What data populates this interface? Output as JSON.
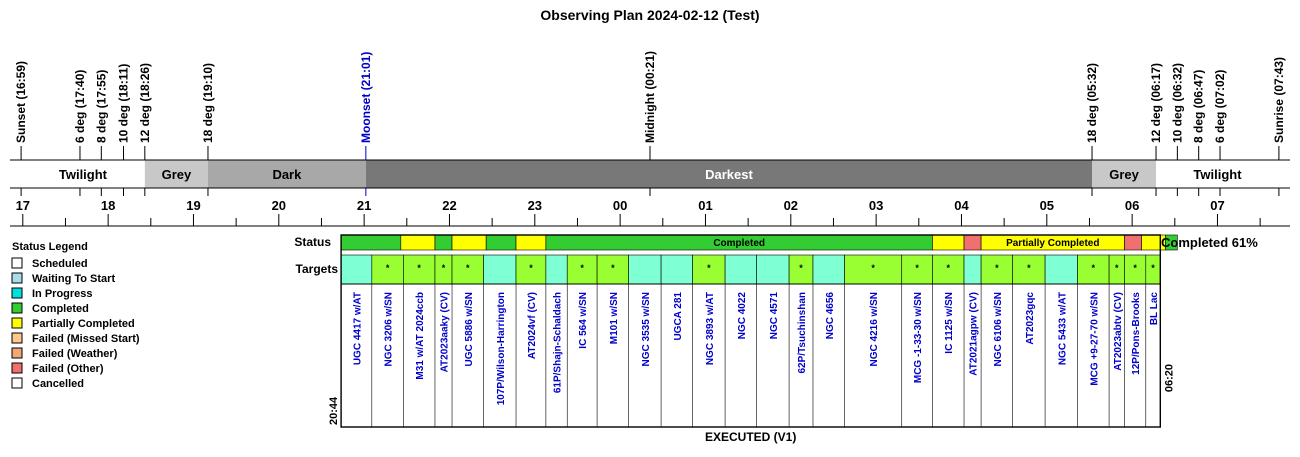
{
  "title": "Observing Plan 2024-02-12 (Test)",
  "colors": {
    "line": "#000000",
    "moon_event": "#0000cc",
    "twilight": "#ffffff",
    "grey": "#c8c8c8",
    "dark": "#a8a8a8",
    "darkest": "#787878",
    "target_text": "#0000cc"
  },
  "chart_data": {
    "type": "timeline",
    "x_unit": "local time (hours since 17:00)",
    "xlim": [
      16.85,
      31.85
    ],
    "events": [
      {
        "label": "Sunset (16:59)",
        "t": 16.98
      },
      {
        "label": "6 deg (17:40)",
        "t": 17.67
      },
      {
        "label": "8 deg (17:55)",
        "t": 17.92
      },
      {
        "label": "10 deg (18:11)",
        "t": 18.18
      },
      {
        "label": "12 deg (18:26)",
        "t": 18.43
      },
      {
        "label": "18 deg (19:10)",
        "t": 19.17
      },
      {
        "label": "Moonset (21:01)",
        "t": 21.02,
        "moon": true
      },
      {
        "label": "Midnight (00:21)",
        "t": 24.35
      },
      {
        "label": "18 deg (05:32)",
        "t": 29.53
      },
      {
        "label": "12 deg (06:17)",
        "t": 30.28
      },
      {
        "label": "10 deg (06:32)",
        "t": 30.53
      },
      {
        "label": "8 deg (06:47)",
        "t": 30.78
      },
      {
        "label": "6 deg (07:02)",
        "t": 31.03
      },
      {
        "label": "Sunrise (07:43)",
        "t": 31.72
      }
    ],
    "periods": [
      {
        "label": "Twilight",
        "start": 16.98,
        "end": 18.43,
        "color": "twilight"
      },
      {
        "label": "Grey",
        "start": 18.43,
        "end": 19.17,
        "color": "grey"
      },
      {
        "label": "Dark",
        "start": 19.17,
        "end": 21.02,
        "color": "dark"
      },
      {
        "label": "Darkest",
        "start": 21.02,
        "end": 29.53,
        "color": "darkest"
      },
      {
        "label": "Grey",
        "start": 29.53,
        "end": 30.28,
        "color": "grey"
      },
      {
        "label": "Twilight",
        "start": 30.28,
        "end": 31.72,
        "color": "twilight"
      }
    ],
    "hour_ticks": [
      "17",
      "18",
      "19",
      "20",
      "21",
      "22",
      "23",
      "00",
      "01",
      "02",
      "03",
      "04",
      "05",
      "06",
      "07"
    ],
    "window": {
      "start": 20.73,
      "end": 30.33,
      "start_label": "20:44",
      "end_label": "06:20",
      "caption": "EXECUTED (V1)"
    },
    "status_label": "Status",
    "targets_label": "Targets",
    "completion": "Completed 61%",
    "status_segments": [
      {
        "start": 20.73,
        "end": 21.43,
        "status": "completed"
      },
      {
        "start": 21.43,
        "end": 21.83,
        "status": "partial"
      },
      {
        "start": 21.83,
        "end": 22.03,
        "status": "completed"
      },
      {
        "start": 22.03,
        "end": 22.43,
        "status": "partial"
      },
      {
        "start": 22.43,
        "end": 22.78,
        "status": "completed"
      },
      {
        "start": 22.78,
        "end": 23.13,
        "status": "partial"
      },
      {
        "start": 23.13,
        "end": 27.66,
        "status": "completed",
        "label": "Completed"
      },
      {
        "start": 27.66,
        "end": 28.03,
        "status": "partial"
      },
      {
        "start": 28.03,
        "end": 28.23,
        "status": "failed_other"
      },
      {
        "start": 28.23,
        "end": 29.91,
        "status": "partial",
        "label": "Partially Completed"
      },
      {
        "start": 29.91,
        "end": 30.11,
        "status": "failed_other"
      },
      {
        "start": 30.11,
        "end": 30.39,
        "status": "partial"
      },
      {
        "start": 30.39,
        "end": 30.53,
        "status": "completed"
      }
    ],
    "targets": [
      {
        "name": "UGC 4417 w/AT",
        "start": 20.73,
        "end": 21.09,
        "fill": "cyan",
        "mark": ""
      },
      {
        "name": "NGC 3206 w/SN",
        "start": 21.09,
        "end": 21.46,
        "fill": "lime",
        "mark": "*"
      },
      {
        "name": "M31 w/AT 2024ccb",
        "start": 21.46,
        "end": 21.83,
        "fill": "lime",
        "mark": "*"
      },
      {
        "name": "AT2023aaky (CV)",
        "start": 21.83,
        "end": 22.03,
        "fill": "lime",
        "mark": "*"
      },
      {
        "name": "UGC 5886 w/SN",
        "start": 22.03,
        "end": 22.4,
        "fill": "lime",
        "mark": "*"
      },
      {
        "name": "107P/Wilson-Harrington",
        "start": 22.4,
        "end": 22.78,
        "fill": "cyan",
        "mark": ""
      },
      {
        "name": "AT2024vf (CV)",
        "start": 22.78,
        "end": 23.13,
        "fill": "lime",
        "mark": "*"
      },
      {
        "name": "61P/Shajn-Schaldach",
        "start": 23.13,
        "end": 23.38,
        "fill": "cyan",
        "mark": ""
      },
      {
        "name": "IC 564 w/SN",
        "start": 23.38,
        "end": 23.73,
        "fill": "lime",
        "mark": "*"
      },
      {
        "name": "M101 w/SN",
        "start": 23.73,
        "end": 24.1,
        "fill": "lime",
        "mark": "*"
      },
      {
        "name": "NGC 3535 w/SN",
        "start": 24.1,
        "end": 24.48,
        "fill": "cyan",
        "mark": ""
      },
      {
        "name": "UGCA 281",
        "start": 24.48,
        "end": 24.85,
        "fill": "cyan",
        "mark": ""
      },
      {
        "name": "NGC 3893 w/AT",
        "start": 24.85,
        "end": 25.23,
        "fill": "lime",
        "mark": "*"
      },
      {
        "name": "NGC 4022",
        "start": 25.23,
        "end": 25.6,
        "fill": "cyan",
        "mark": ""
      },
      {
        "name": "NGC 4571",
        "start": 25.6,
        "end": 25.98,
        "fill": "cyan",
        "mark": ""
      },
      {
        "name": "62P/Tsuchinshan",
        "start": 25.98,
        "end": 26.26,
        "fill": "lime",
        "mark": "*"
      },
      {
        "name": "NGC 4656",
        "start": 26.26,
        "end": 26.63,
        "fill": "cyan",
        "mark": ""
      },
      {
        "name": "NGC 4216 w/SN",
        "start": 26.63,
        "end": 27.3,
        "fill": "lime",
        "mark": "*"
      },
      {
        "name": "MCG -1-33-30 w/SN",
        "start": 27.3,
        "end": 27.66,
        "fill": "lime",
        "mark": "*"
      },
      {
        "name": "IC 1125 w/SN",
        "start": 27.66,
        "end": 28.03,
        "fill": "lime",
        "mark": "*"
      },
      {
        "name": "AT2021agpw (CV)",
        "start": 28.03,
        "end": 28.23,
        "fill": "cyan",
        "mark": ""
      },
      {
        "name": "NGC 6106 w/SN",
        "start": 28.23,
        "end": 28.6,
        "fill": "lime",
        "mark": "*"
      },
      {
        "name": "AT2023gqc",
        "start": 28.6,
        "end": 28.98,
        "fill": "lime",
        "mark": "*"
      },
      {
        "name": "NGC 5433 w/AT",
        "start": 28.98,
        "end": 29.36,
        "fill": "cyan",
        "mark": ""
      },
      {
        "name": "MCG +9-27-70 w/SN",
        "start": 29.36,
        "end": 29.73,
        "fill": "lime",
        "mark": "*"
      },
      {
        "name": "AT2023abtv (CV)",
        "start": 29.73,
        "end": 29.91,
        "fill": "lime",
        "mark": "*"
      },
      {
        "name": "12P/Pons-Brooks",
        "start": 29.91,
        "end": 30.16,
        "fill": "lime",
        "mark": "*"
      },
      {
        "name": "BL Lac",
        "start": 30.16,
        "end": 30.33,
        "fill": "lime",
        "mark": "*"
      }
    ]
  },
  "legend": {
    "title": "Status Legend",
    "items": [
      {
        "label": "Scheduled",
        "color": "#ffffff"
      },
      {
        "label": "Waiting To Start",
        "color": "#a8dce8"
      },
      {
        "label": "In Progress",
        "color": "#00e0e0"
      },
      {
        "label": "Completed",
        "color": "#33cc33"
      },
      {
        "label": "Partially Completed",
        "color": "#ffff00"
      },
      {
        "label": "Failed (Missed Start)",
        "color": "#ffc88c"
      },
      {
        "label": "Failed (Weather)",
        "color": "#f0a878"
      },
      {
        "label": "Failed (Other)",
        "color": "#f07070"
      },
      {
        "label": "Cancelled",
        "color": "#ffffff"
      }
    ]
  },
  "status_colors": {
    "completed": "#33cc33",
    "partial": "#ffff00",
    "failed_other": "#f07070"
  },
  "target_fills": {
    "cyan": "#7fffd4",
    "lime": "#99ff33"
  }
}
